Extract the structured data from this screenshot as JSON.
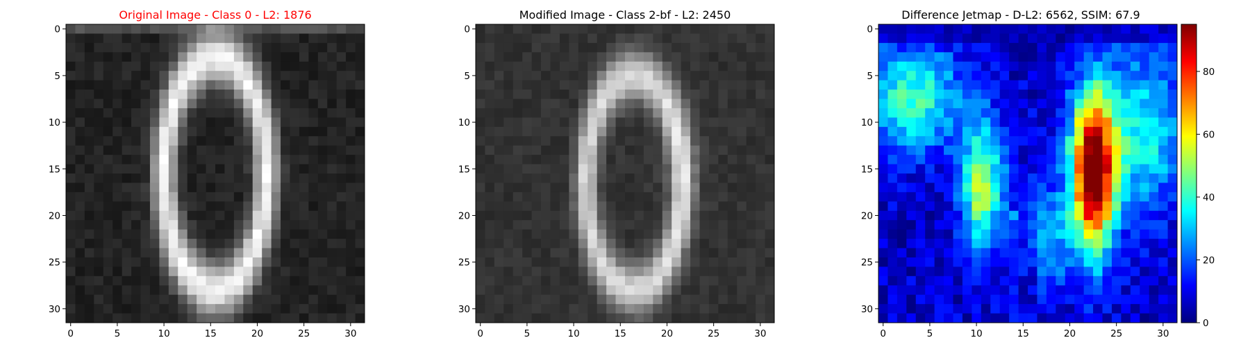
{
  "figure": {
    "background": "#ffffff"
  },
  "panels": [
    {
      "title": "Original Image - Class 0 - L2: 1876",
      "title_color": "#ff0000",
      "colormap": "gray"
    },
    {
      "title": "Modified Image - Class 2-bf - L2: 2450",
      "title_color": "#000000",
      "colormap": "gray"
    },
    {
      "title": "Difference Jetmap - D-L2: 6562, SSIM: 67.9",
      "title_color": "#000000",
      "colormap": "jet"
    }
  ],
  "chart_data": [
    {
      "type": "heatmap",
      "title": "Original Image - Class 0 - L2: 1876",
      "colormap": "gray",
      "grid_size": [
        32,
        32
      ],
      "xlim": [
        -0.5,
        31.5
      ],
      "ylim": [
        31.5,
        -0.5
      ],
      "x_ticks": [
        0,
        5,
        10,
        15,
        20,
        25,
        30
      ],
      "y_ticks": [
        0,
        5,
        10,
        15,
        20,
        25,
        30
      ],
      "shape": "digit-0 ring centered near column 15.5, rows 3-29, bright ring with dark center core",
      "approx_value_range": [
        0,
        255
      ]
    },
    {
      "type": "heatmap",
      "title": "Modified Image - Class 2-bf - L2: 2450",
      "colormap": "gray",
      "grid_size": [
        32,
        32
      ],
      "xlim": [
        -0.5,
        31.5
      ],
      "ylim": [
        31.5,
        -0.5
      ],
      "x_ticks": [
        0,
        5,
        10,
        15,
        20,
        25,
        30
      ],
      "y_ticks": [
        0,
        5,
        10,
        15,
        20,
        25,
        30
      ],
      "shape": "dimmer digit-0 ring centered near column 16.5, rows 4-28",
      "approx_value_range": [
        0,
        255
      ]
    },
    {
      "type": "heatmap",
      "title": "Difference Jetmap - D-L2: 6562, SSIM: 67.9",
      "colormap": "jet",
      "grid_size": [
        32,
        32
      ],
      "xlim": [
        -0.5,
        31.5
      ],
      "ylim": [
        31.5,
        -0.5
      ],
      "x_ticks": [
        0,
        5,
        10,
        15,
        20,
        25,
        30
      ],
      "y_ticks": [
        0,
        5,
        10,
        15,
        20,
        25,
        30
      ],
      "colorbar": {
        "min": 0,
        "max": 95,
        "ticks": [
          0,
          20,
          40,
          60,
          80
        ]
      },
      "hotspots": [
        {
          "row_range": [
            7,
            25
          ],
          "col_range": [
            20,
            25
          ],
          "peak": 95
        },
        {
          "row_range": [
            12,
            24
          ],
          "col_range": [
            9,
            12
          ],
          "peak": 48
        },
        {
          "row_range": [
            2,
            14
          ],
          "col_range": [
            0,
            10
          ],
          "peak": 38
        }
      ]
    }
  ]
}
